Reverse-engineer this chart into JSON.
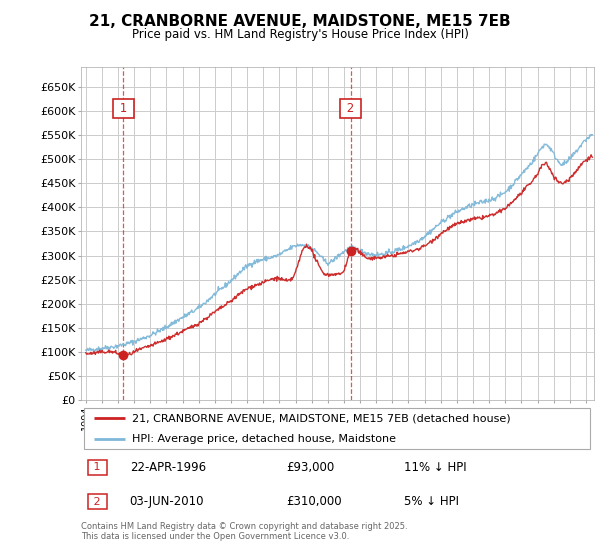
{
  "title": "21, CRANBORNE AVENUE, MAIDSTONE, ME15 7EB",
  "subtitle": "Price paid vs. HM Land Registry's House Price Index (HPI)",
  "ylabel_ticks": [
    "£0",
    "£50K",
    "£100K",
    "£150K",
    "£200K",
    "£250K",
    "£300K",
    "£350K",
    "£400K",
    "£450K",
    "£500K",
    "£550K",
    "£600K",
    "£650K"
  ],
  "ytick_values": [
    0,
    50000,
    100000,
    150000,
    200000,
    250000,
    300000,
    350000,
    400000,
    450000,
    500000,
    550000,
    600000,
    650000
  ],
  "ylim": [
    0,
    690000
  ],
  "xlim_start": 1993.7,
  "xlim_end": 2025.5,
  "sale1_date": 1996.31,
  "sale1_price": 93000,
  "sale2_date": 2010.42,
  "sale2_price": 310000,
  "legend_property": "21, CRANBORNE AVENUE, MAIDSTONE, ME15 7EB (detached house)",
  "legend_hpi": "HPI: Average price, detached house, Maidstone",
  "footer": "Contains HM Land Registry data © Crown copyright and database right 2025.\nThis data is licensed under the Open Government Licence v3.0.",
  "hpi_color": "#7fb8d8",
  "property_color": "#cc2222",
  "grid_color": "#cccccc",
  "bg_color": "#ffffff"
}
